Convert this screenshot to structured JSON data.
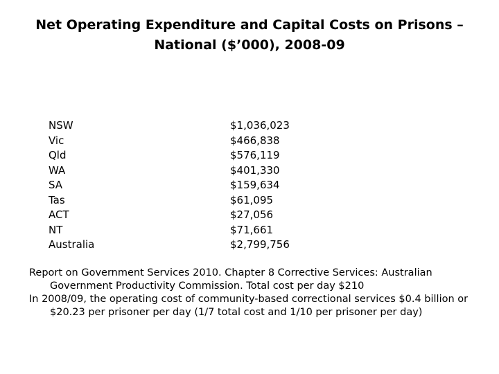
{
  "title": {
    "line1": "Net Operating Expenditure and Capital Costs on Prisons –",
    "line2": "National ($’000), 2008-09"
  },
  "rows": [
    {
      "region": "NSW",
      "amount": "$1,036,023"
    },
    {
      "region": "Vic",
      "amount": "$466,838"
    },
    {
      "region": "Qld",
      "amount": "$576,119"
    },
    {
      "region": "WA",
      "amount": "$401,330"
    },
    {
      "region": "SA",
      "amount": "$159,634"
    },
    {
      "region": "Tas",
      "amount": "$61,095"
    },
    {
      "region": "ACT",
      "amount": "$27,056"
    },
    {
      "region": "NT",
      "amount": "$71,661"
    },
    {
      "region": "Australia",
      "amount": "$2,799,756"
    }
  ],
  "notes": [
    "Report on Government Services 2010. Chapter 8 Corrective Services: Australian Government Productivity Commission. Total cost per day $210",
    "In 2008/09, the operating cost of community-based correctional services $0.4 billion or $20.23 per prisoner per day (1/7 total cost and 1/10 per prisoner per day)"
  ]
}
